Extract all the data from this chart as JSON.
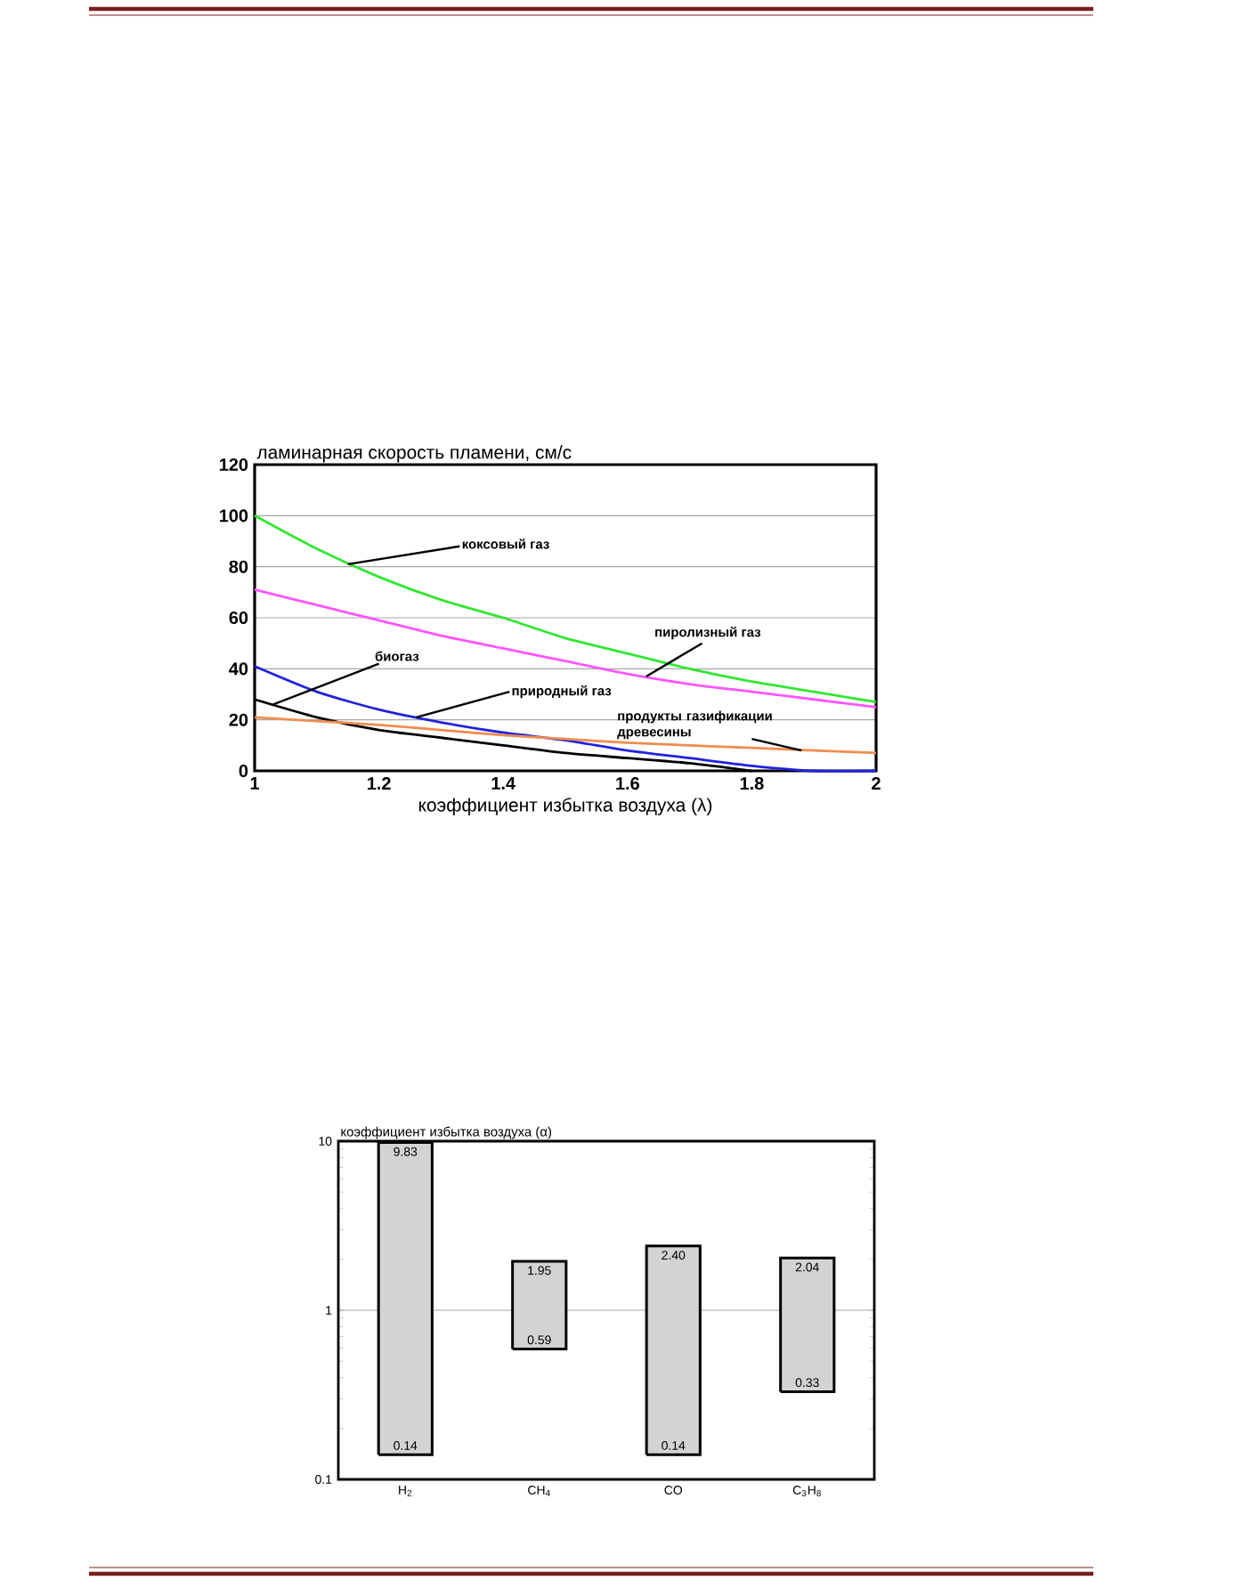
{
  "chart_data": [
    {
      "type": "line",
      "xlabel": "коэффициент избытка воздуха (λ)",
      "ylabel": "ламинарная скорость пламени, см/с",
      "x": [
        1,
        1.1,
        1.2,
        1.3,
        1.4,
        1.5,
        1.6,
        1.7,
        1.8,
        1.9,
        2
      ],
      "series": [
        {
          "color": "#33e633",
          "values": [
            100,
            87,
            76,
            67,
            60,
            52,
            46,
            40,
            35,
            31,
            27
          ]
        },
        {
          "color": "#ff55ff",
          "values": [
            71,
            65,
            59,
            53,
            48,
            43,
            38,
            34,
            31,
            28,
            25
          ]
        },
        {
          "color": "#2222dd",
          "values": [
            41,
            31,
            24,
            19,
            15,
            12,
            8,
            5,
            2,
            0,
            0
          ]
        },
        {
          "color": "#000000",
          "values": [
            28,
            21,
            16,
            13,
            10,
            7,
            5,
            3,
            0,
            null,
            null
          ]
        },
        {
          "color": "#f08c50",
          "values": [
            21,
            19.5,
            18,
            16,
            14,
            12.5,
            11,
            10,
            9,
            8,
            7
          ]
        }
      ],
      "xlim": [
        1,
        2
      ],
      "ylim": [
        0,
        120
      ],
      "xticks": [
        1,
        1.2,
        1.4,
        1.6,
        1.8,
        2
      ],
      "yticks": [
        0,
        20,
        40,
        60,
        80,
        100,
        120
      ],
      "grid": "y",
      "marker": "none",
      "line_style": "solid",
      "annotations": [
        {
          "text": "коксовый газ",
          "x": 1.15,
          "y": 81
        },
        {
          "text": "пиролизный газ",
          "x": 1.63,
          "y": 37
        },
        {
          "text": "биогаз",
          "x": 1.03,
          "y": 26
        },
        {
          "text": "природный газ",
          "x": 1.26,
          "y": 21
        },
        {
          "text": "продукты газификации древесины",
          "x": 1.88,
          "y": 8
        }
      ]
    },
    {
      "type": "bar",
      "ylabel": "коэффициент избытка воздуха (α)",
      "categories": [
        "H$_{2}$",
        "CH$_{4}$",
        "CO",
        "C$_{3}$H$_{8}$"
      ],
      "base": [
        0.14,
        0.59,
        0.14,
        0.33
      ],
      "values": [
        9.69,
        1.36,
        2.26,
        1.71
      ],
      "color": "#d3d3d3",
      "log": "y",
      "ylim": [
        0.1,
        10
      ],
      "yticks": [
        0.1,
        1,
        10
      ],
      "grid": "y",
      "annotations": [
        {
          "text": "9.83",
          "x": "H$_{2}$",
          "y": 9.83
        },
        {
          "text": "0.14",
          "x": "H$_{2}$",
          "y": 0.14
        },
        {
          "text": "1.95",
          "x": "CH$_{4}$",
          "y": 1.95
        },
        {
          "text": "0.59",
          "x": "CH$_{4}$",
          "y": 0.59
        },
        {
          "text": "2.40",
          "x": "CO",
          "y": 2.4
        },
        {
          "text": "0.14",
          "x": "CO",
          "y": 0.14
        },
        {
          "text": "2.04",
          "x": "C$_{3}$H$_{8}$",
          "y": 2.04
        },
        {
          "text": "0.33",
          "x": "C$_{3}$H$_{8}$",
          "y": 0.33
        }
      ]
    }
  ]
}
